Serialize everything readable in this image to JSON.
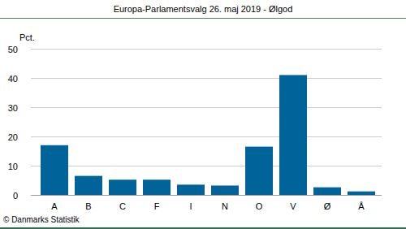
{
  "chart_data": {
    "type": "bar",
    "title": "Europa-Parlamentsvalg 26. maj 2019 - Ølgod",
    "y_label": "Pct.",
    "source": "© Danmarks Statistik",
    "categories": [
      "A",
      "B",
      "C",
      "F",
      "I",
      "N",
      "O",
      "V",
      "Ø",
      "Å"
    ],
    "values": [
      17.0,
      6.5,
      5.2,
      5.2,
      3.5,
      3.2,
      16.5,
      41.0,
      2.6,
      1.2
    ],
    "color": "#00639a",
    "ylim": [
      0,
      50
    ],
    "yticks": [
      0,
      10,
      20,
      30,
      40,
      50
    ],
    "grid": true
  }
}
